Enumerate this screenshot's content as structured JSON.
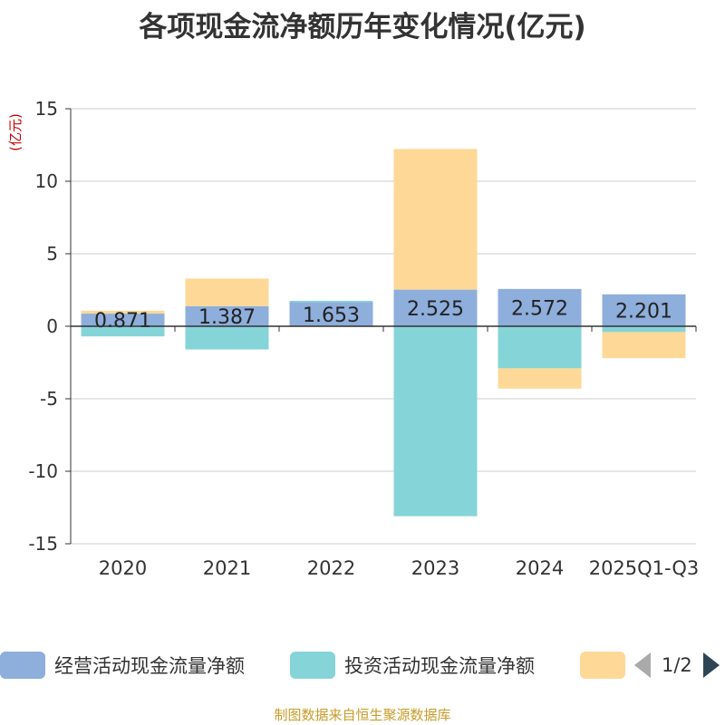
{
  "chart_data": {
    "type": "bar",
    "stacked": true,
    "title": "各项现金流净额历年变化情况(亿元)",
    "ylabel": "(亿元)",
    "xlabel": "",
    "ylim": [
      -15,
      15
    ],
    "yticks": [
      15,
      10,
      5,
      0,
      -5,
      -10,
      -15
    ],
    "categories": [
      "2020",
      "2021",
      "2022",
      "2023",
      "2024",
      "2025Q1-Q3"
    ],
    "series": [
      {
        "name": "经营活动现金流量净额",
        "color": "#8eaedc",
        "values": [
          0.871,
          1.387,
          1.653,
          2.525,
          2.572,
          2.201
        ],
        "labels": [
          "0.871",
          "1.387",
          "1.653",
          "2.525",
          "2.572",
          "2.201"
        ]
      },
      {
        "name": "投资活动现金流量净额",
        "color": "#85d4d8",
        "values": [
          -0.7,
          -1.6,
          0.1,
          -13.1,
          -2.9,
          -0.4
        ],
        "labels": null
      },
      {
        "name": "",
        "color": "#fdd897",
        "values": [
          0.2,
          1.9,
          -0.05,
          9.7,
          -1.4,
          -1.8
        ],
        "labels": null
      }
    ],
    "legend_position": "bottom",
    "grid": true
  },
  "legend": {
    "items": [
      "经营活动现金流量净额",
      "投资活动现金流量净额",
      ""
    ],
    "page_text": "1/2"
  },
  "source": "制图数据来自恒生聚源数据库"
}
